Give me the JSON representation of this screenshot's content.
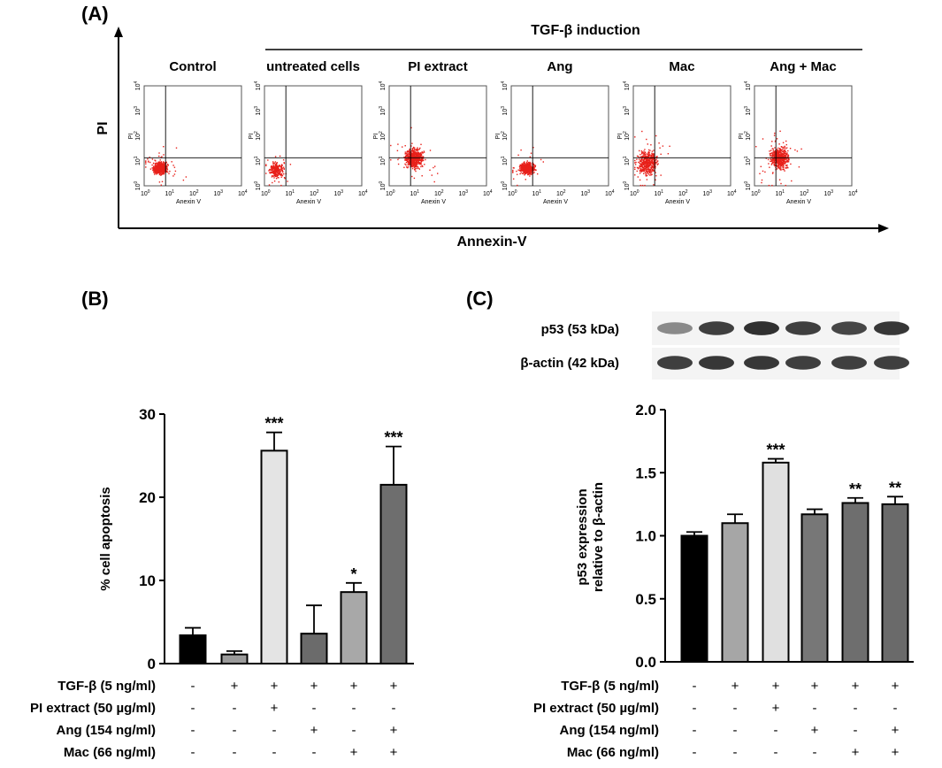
{
  "panel_labels": {
    "a": "(A)",
    "b": "(B)",
    "c": "(C)"
  },
  "panel_a": {
    "x_axis_label": "Annexin-V",
    "y_axis_label": "PI",
    "induction_label": "TGF-β induction",
    "plots": [
      {
        "title": "Control",
        "cluster": "low"
      },
      {
        "title": "untreated cells",
        "cluster": "sparse"
      },
      {
        "title": "PI extract",
        "cluster": "shift"
      },
      {
        "title": "Ang",
        "cluster": "low"
      },
      {
        "title": "Mac",
        "cluster": "spread"
      },
      {
        "title": "Ang + Mac",
        "cluster": "shift"
      }
    ],
    "flow_x_label": "Anexin V",
    "flow_y_label": "PI",
    "flow_ticks": [
      "10",
      "10",
      "10",
      "10",
      "10"
    ],
    "flow_tick_exps": [
      "0",
      "1",
      "2",
      "3",
      "4"
    ],
    "dot_color": "#e8201a"
  },
  "chart_data": [
    {
      "type": "bar",
      "panel": "B",
      "ylabel": "% cell apoptosis",
      "ylim": [
        0,
        30
      ],
      "yticks": [
        "0",
        "10",
        "20",
        "30"
      ],
      "ytick_values": [
        0,
        10,
        20,
        30
      ],
      "values": [
        3.4,
        1.1,
        25.6,
        3.6,
        8.6,
        21.5
      ],
      "errors": [
        0.9,
        0.4,
        2.2,
        3.4,
        1.1,
        4.6
      ],
      "significance": [
        "",
        "",
        "***",
        "",
        "*",
        "***"
      ],
      "colors": [
        "#000000",
        "#9b9b9b",
        "#e4e4e4",
        "#6b6b6b",
        "#a8a8a8",
        "#6e6e6e"
      ]
    },
    {
      "type": "bar",
      "panel": "C",
      "ylabel_line1": "p53 expression",
      "ylabel_line2": "relative to β-actin",
      "ylim": [
        0,
        2.0
      ],
      "yticks": [
        "0.0",
        "0.5",
        "1.0",
        "1.5",
        "2.0"
      ],
      "ytick_values": [
        0,
        0.5,
        1.0,
        1.5,
        2.0
      ],
      "values": [
        1.0,
        1.1,
        1.58,
        1.17,
        1.26,
        1.25
      ],
      "errors": [
        0.03,
        0.07,
        0.03,
        0.04,
        0.04,
        0.06
      ],
      "significance": [
        "",
        "",
        "***",
        "",
        "**",
        "**"
      ],
      "colors": [
        "#000000",
        "#a6a6a6",
        "#e0e0e0",
        "#777777",
        "#6e6e6e",
        "#6a6a6a"
      ]
    }
  ],
  "treatments": [
    {
      "label": "TGF-β (5 ng/ml)",
      "marks": [
        "-",
        "+",
        "+",
        "+",
        "+",
        "+"
      ]
    },
    {
      "label": "PI extract (50 µg/ml)",
      "marks": [
        "-",
        "-",
        "+",
        "-",
        "-",
        "-"
      ]
    },
    {
      "label": "Ang  (154 ng/ml)",
      "marks": [
        "-",
        "-",
        "-",
        "+",
        "-",
        "+"
      ]
    },
    {
      "label": "Mac (66 ng/ml)",
      "marks": [
        "-",
        "-",
        "-",
        "-",
        "+",
        "+"
      ]
    }
  ],
  "western_blot": {
    "bands": [
      {
        "label": "p53 (53 kDa)",
        "intensities": [
          0.35,
          0.85,
          0.95,
          0.85,
          0.8,
          0.9
        ]
      },
      {
        "label": "β-actin (42 kDa)",
        "intensities": [
          0.85,
          0.9,
          0.9,
          0.85,
          0.85,
          0.85
        ]
      }
    ]
  }
}
